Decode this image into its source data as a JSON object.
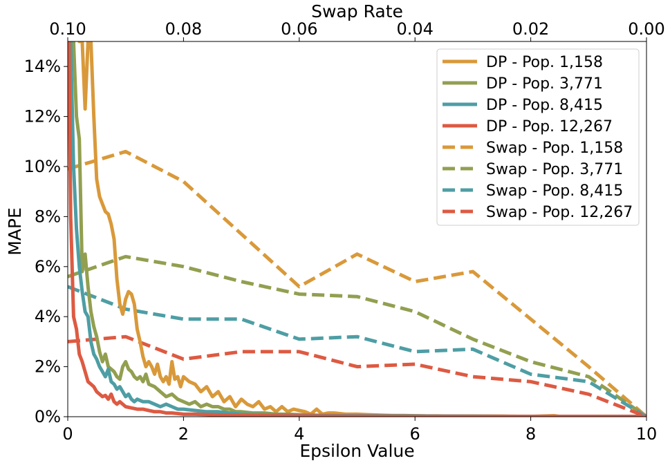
{
  "chart_data": {
    "type": "line",
    "xlabel": "Epsilon Value",
    "ylabel": "MAPE",
    "top_xlabel": "Swap Rate",
    "xlim": [
      0,
      10
    ],
    "ylim": [
      0,
      0.15
    ],
    "top_xlim": [
      0.1,
      0.0
    ],
    "x_ticks": [
      0,
      2,
      4,
      6,
      8,
      10
    ],
    "x_tick_labels": [
      "0",
      "2",
      "4",
      "6",
      "8",
      "10"
    ],
    "top_ticks": [
      0.1,
      0.08,
      0.06,
      0.04,
      0.02,
      0.0
    ],
    "top_tick_labels": [
      "0.10",
      "0.08",
      "0.06",
      "0.04",
      "0.02",
      "0.00"
    ],
    "y_ticks": [
      0,
      0.02,
      0.04,
      0.06,
      0.08,
      0.1,
      0.12,
      0.14
    ],
    "y_tick_labels": [
      "0%",
      "2%",
      "4%",
      "6%",
      "8%",
      "10%",
      "12%",
      "14%"
    ],
    "grid": false,
    "legend_position": "top-right",
    "series": [
      {
        "name": "DP - Pop. 1,158",
        "style": "solid",
        "color": "#D9993A",
        "x": [
          0.2,
          0.25,
          0.3,
          0.35,
          0.4,
          0.45,
          0.5,
          0.55,
          0.6,
          0.65,
          0.7,
          0.75,
          0.8,
          0.85,
          0.9,
          0.95,
          1.0,
          1.05,
          1.1,
          1.15,
          1.2,
          1.25,
          1.3,
          1.35,
          1.4,
          1.45,
          1.5,
          1.55,
          1.6,
          1.65,
          1.7,
          1.75,
          1.8,
          1.85,
          1.9,
          1.95,
          2.0,
          2.1,
          2.2,
          2.3,
          2.4,
          2.5,
          2.6,
          2.7,
          2.8,
          2.9,
          3.0,
          3.1,
          3.2,
          3.3,
          3.4,
          3.5,
          3.6,
          3.7,
          3.8,
          3.9,
          4.0,
          4.1,
          4.2,
          4.3,
          4.4,
          4.5,
          4.6,
          4.8,
          5.0,
          5.2,
          5.4,
          5.6,
          5.8,
          6.0,
          6.2,
          6.4,
          6.6,
          6.8,
          7.0,
          7.5,
          8.0,
          8.4,
          8.5,
          9.0,
          9.5,
          10.0
        ],
        "y": [
          0.15,
          0.15,
          0.123,
          0.15,
          0.15,
          0.12,
          0.095,
          0.088,
          0.085,
          0.082,
          0.081,
          0.077,
          0.071,
          0.055,
          0.045,
          0.041,
          0.047,
          0.05,
          0.049,
          0.045,
          0.035,
          0.03,
          0.024,
          0.02,
          0.022,
          0.02,
          0.017,
          0.021,
          0.016,
          0.014,
          0.016,
          0.013,
          0.022,
          0.015,
          0.016,
          0.012,
          0.016,
          0.014,
          0.013,
          0.01,
          0.012,
          0.008,
          0.01,
          0.006,
          0.008,
          0.004,
          0.007,
          0.005,
          0.004,
          0.006,
          0.003,
          0.004,
          0.002,
          0.004,
          0.002,
          0.003,
          0.0025,
          0.002,
          0.001,
          0.003,
          0.001,
          0.0015,
          0.0015,
          0.001,
          0.001,
          0.0008,
          0.0006,
          0.0005,
          0.0005,
          0.0004,
          0.0003,
          0.0003,
          0.0002,
          0.0002,
          0.0002,
          0.0002,
          0.0001,
          0.0004,
          0.0001,
          0.0001,
          0.0001,
          0.0001
        ]
      },
      {
        "name": "DP - Pop. 3,771",
        "style": "solid",
        "color": "#929F50",
        "x": [
          0.1,
          0.15,
          0.2,
          0.25,
          0.3,
          0.35,
          0.4,
          0.45,
          0.5,
          0.55,
          0.6,
          0.65,
          0.7,
          0.75,
          0.8,
          0.85,
          0.9,
          0.95,
          1.0,
          1.05,
          1.1,
          1.15,
          1.2,
          1.25,
          1.3,
          1.35,
          1.4,
          1.5,
          1.6,
          1.7,
          1.8,
          1.9,
          2.0,
          2.1,
          2.2,
          2.3,
          2.4,
          2.5,
          2.6,
          2.7,
          2.8,
          2.9,
          3.0,
          3.2,
          3.4,
          3.6,
          3.8,
          4.0,
          4.5,
          5.0,
          6.0,
          7.0,
          8.0,
          9.0,
          10.0
        ],
        "y": [
          0.15,
          0.12,
          0.111,
          0.058,
          0.065,
          0.052,
          0.042,
          0.036,
          0.032,
          0.026,
          0.022,
          0.025,
          0.02,
          0.019,
          0.018,
          0.016,
          0.015,
          0.02,
          0.022,
          0.019,
          0.018,
          0.016,
          0.015,
          0.016,
          0.014,
          0.017,
          0.013,
          0.012,
          0.01,
          0.008,
          0.009,
          0.007,
          0.006,
          0.005,
          0.006,
          0.004,
          0.005,
          0.004,
          0.004,
          0.003,
          0.003,
          0.002,
          0.002,
          0.0015,
          0.0015,
          0.001,
          0.001,
          0.0008,
          0.0005,
          0.0004,
          0.0003,
          0.0002,
          0.0001,
          0.0001,
          0.0001
        ]
      },
      {
        "name": "DP - Pop. 8,415",
        "style": "solid",
        "color": "#4E9EA4",
        "x": [
          0.05,
          0.1,
          0.15,
          0.2,
          0.25,
          0.3,
          0.35,
          0.4,
          0.45,
          0.5,
          0.55,
          0.6,
          0.65,
          0.7,
          0.75,
          0.8,
          0.85,
          0.9,
          0.95,
          1.0,
          1.05,
          1.1,
          1.15,
          1.2,
          1.3,
          1.4,
          1.5,
          1.6,
          1.7,
          1.8,
          1.9,
          2.0,
          2.2,
          2.4,
          2.6,
          2.8,
          3.0,
          3.5,
          4.0,
          5.0,
          6.0,
          7.0,
          8.0,
          9.0,
          10.0
        ],
        "y": [
          0.15,
          0.1,
          0.075,
          0.06,
          0.05,
          0.042,
          0.04,
          0.03,
          0.025,
          0.023,
          0.02,
          0.018,
          0.016,
          0.019,
          0.014,
          0.013,
          0.011,
          0.012,
          0.01,
          0.008,
          0.009,
          0.007,
          0.006,
          0.007,
          0.006,
          0.006,
          0.005,
          0.004,
          0.005,
          0.004,
          0.003,
          0.003,
          0.0025,
          0.002,
          0.002,
          0.0015,
          0.001,
          0.0008,
          0.0006,
          0.0004,
          0.0003,
          0.0002,
          0.0001,
          0.0001,
          0.0001
        ]
      },
      {
        "name": "DP - Pop. 12,267",
        "style": "solid",
        "color": "#DD5A42",
        "x": [
          0.02,
          0.05,
          0.1,
          0.15,
          0.2,
          0.25,
          0.3,
          0.35,
          0.4,
          0.45,
          0.5,
          0.55,
          0.6,
          0.65,
          0.7,
          0.75,
          0.8,
          0.85,
          0.9,
          0.95,
          1.0,
          1.1,
          1.2,
          1.3,
          1.4,
          1.5,
          1.6,
          1.7,
          1.8,
          2.0,
          2.2,
          2.5,
          3.0,
          3.5,
          4.0,
          5.0,
          6.0,
          7.0,
          8.0,
          9.0,
          10.0
        ],
        "y": [
          0.15,
          0.08,
          0.04,
          0.035,
          0.025,
          0.022,
          0.018,
          0.014,
          0.013,
          0.012,
          0.01,
          0.009,
          0.008,
          0.0085,
          0.007,
          0.009,
          0.006,
          0.005,
          0.006,
          0.005,
          0.004,
          0.0035,
          0.003,
          0.003,
          0.0025,
          0.002,
          0.002,
          0.0015,
          0.0015,
          0.001,
          0.001,
          0.0008,
          0.0005,
          0.0004,
          0.0003,
          0.0002,
          0.0001,
          0.0001,
          0.0001,
          0.0001,
          0.0001
        ]
      },
      {
        "name": "Swap - Pop. 1,158",
        "style": "dashed",
        "color": "#D9993A",
        "x": [
          0,
          1,
          2,
          3,
          4,
          5,
          6,
          7,
          8,
          9,
          10
        ],
        "y": [
          0.099,
          0.106,
          0.094,
          0.073,
          0.052,
          0.065,
          0.054,
          0.058,
          0.039,
          0.02,
          0.0
        ]
      },
      {
        "name": "Swap - Pop. 3,771",
        "style": "dashed",
        "color": "#929F50",
        "x": [
          0,
          1,
          2,
          3,
          4,
          5,
          6,
          7,
          8,
          9,
          10
        ],
        "y": [
          0.056,
          0.064,
          0.06,
          0.054,
          0.049,
          0.048,
          0.042,
          0.031,
          0.022,
          0.016,
          0.0
        ]
      },
      {
        "name": "Swap - Pop. 8,415",
        "style": "dashed",
        "color": "#4E9EA4",
        "x": [
          0,
          1,
          2,
          3,
          4,
          5,
          6,
          7,
          8,
          9,
          10
        ],
        "y": [
          0.052,
          0.043,
          0.039,
          0.039,
          0.031,
          0.032,
          0.026,
          0.027,
          0.017,
          0.014,
          0.0
        ]
      },
      {
        "name": "Swap - Pop. 12,267",
        "style": "dashed",
        "color": "#DD5A42",
        "x": [
          0,
          1,
          2,
          3,
          4,
          5,
          6,
          7,
          8,
          9,
          10
        ],
        "y": [
          0.03,
          0.032,
          0.023,
          0.026,
          0.026,
          0.02,
          0.021,
          0.016,
          0.014,
          0.009,
          0.0
        ]
      }
    ]
  }
}
